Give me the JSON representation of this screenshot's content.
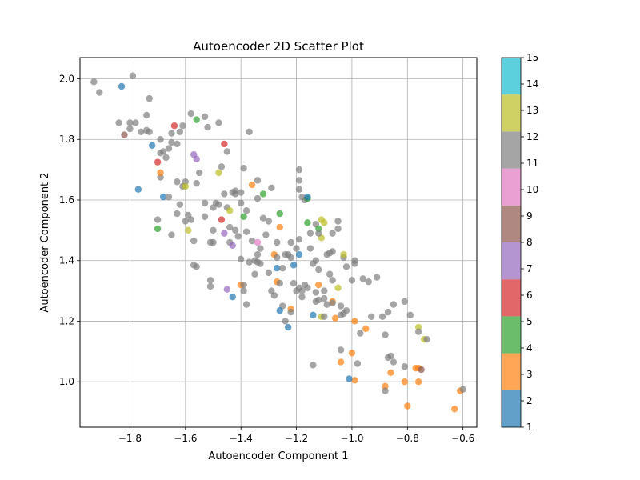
{
  "chart_data": {
    "type": "scatter",
    "title": "Autoencoder 2D Scatter Plot",
    "xlabel": "Autoencoder Component 1",
    "ylabel": "Autoencoder Component 2",
    "xlim": [
      -1.98,
      -0.55
    ],
    "ylim": [
      0.85,
      2.07
    ],
    "xticks": [
      -1.8,
      -1.6,
      -1.4,
      -1.2,
      -1.0,
      -0.8,
      -0.6
    ],
    "xtick_labels": [
      "−1.8",
      "−1.6",
      "−1.4",
      "−1.2",
      "−1.0",
      "−0.8",
      "−0.6"
    ],
    "yticks": [
      1.0,
      1.2,
      1.4,
      1.6,
      1.8,
      2.0
    ],
    "ytick_labels": [
      "1.0",
      "1.2",
      "1.4",
      "1.6",
      "1.8",
      "2.0"
    ],
    "grid": true,
    "colorbar": {
      "range": [
        1,
        15
      ],
      "ticks": [
        1,
        2,
        3,
        4,
        5,
        6,
        7,
        8,
        9,
        10,
        11,
        12,
        13,
        14,
        15
      ],
      "bands": [
        {
          "from": 1,
          "to": 2.4,
          "color": "#1f77b4"
        },
        {
          "from": 2.4,
          "to": 3.8,
          "color": "#ff7f0e"
        },
        {
          "from": 3.8,
          "to": 5.2,
          "color": "#2ca02c"
        },
        {
          "from": 5.2,
          "to": 6.6,
          "color": "#d62728"
        },
        {
          "from": 6.6,
          "to": 8.0,
          "color": "#9467bd"
        },
        {
          "from": 8.0,
          "to": 9.4,
          "color": "#8c564b"
        },
        {
          "from": 9.4,
          "to": 10.8,
          "color": "#e377c2"
        },
        {
          "from": 10.8,
          "to": 12.2,
          "color": "#7f7f7f"
        },
        {
          "from": 12.2,
          "to": 13.6,
          "color": "#bcbd22"
        },
        {
          "from": 13.6,
          "to": 15,
          "color": "#17becf"
        }
      ]
    },
    "points": [
      [
        -1.93,
        1.99,
        11.5
      ],
      [
        -1.91,
        1.955,
        11.5
      ],
      [
        -1.83,
        1.975,
        1.5
      ],
      [
        -1.79,
        2.01,
        11.5
      ],
      [
        -1.84,
        1.855,
        11.5
      ],
      [
        -1.82,
        1.815,
        8.5
      ],
      [
        -1.8,
        1.835,
        11.5
      ],
      [
        -1.8,
        1.855,
        11.5
      ],
      [
        -1.78,
        1.855,
        11.5
      ],
      [
        -1.76,
        1.825,
        11.5
      ],
      [
        -1.74,
        1.83,
        11.5
      ],
      [
        -1.73,
        1.825,
        11.5
      ],
      [
        -1.74,
        1.88,
        11.5
      ],
      [
        -1.73,
        1.935,
        11.5
      ],
      [
        -1.72,
        1.78,
        1.5
      ],
      [
        -1.7,
        1.725,
        5.5
      ],
      [
        -1.69,
        1.755,
        11.5
      ],
      [
        -1.69,
        1.8,
        11.5
      ],
      [
        -1.68,
        1.76,
        11.5
      ],
      [
        -1.67,
        1.74,
        11.5
      ],
      [
        -1.66,
        1.77,
        11.5
      ],
      [
        -1.65,
        1.82,
        11.5
      ],
      [
        -1.64,
        1.845,
        5.5
      ],
      [
        -1.63,
        1.785,
        11.5
      ],
      [
        -1.62,
        1.825,
        11.5
      ],
      [
        -1.61,
        1.845,
        11.5
      ],
      [
        -1.65,
        1.79,
        11.5
      ],
      [
        -1.58,
        1.885,
        11.5
      ],
      [
        -1.56,
        1.865,
        4.5
      ],
      [
        -1.53,
        1.875,
        11.5
      ],
      [
        -1.52,
        1.84,
        11.5
      ],
      [
        -1.48,
        1.855,
        11.5
      ],
      [
        -1.46,
        1.785,
        5.5
      ],
      [
        -1.45,
        1.76,
        11.5
      ],
      [
        -1.37,
        1.825,
        11.5
      ],
      [
        -1.57,
        1.75,
        7.5
      ],
      [
        -1.56,
        1.735,
        7.5
      ],
      [
        -1.77,
        1.635,
        1.5
      ],
      [
        -1.69,
        1.675,
        11.5
      ],
      [
        -1.69,
        1.69,
        3.5
      ],
      [
        -1.68,
        1.61,
        1.5
      ],
      [
        -1.66,
        1.61,
        11.5
      ],
      [
        -1.63,
        1.66,
        11.5
      ],
      [
        -1.61,
        1.645,
        11.5
      ],
      [
        -1.6,
        1.66,
        11.5
      ],
      [
        -1.6,
        1.645,
        12.5
      ],
      [
        -1.62,
        1.585,
        11.5
      ],
      [
        -1.63,
        1.555,
        11.5
      ],
      [
        -1.6,
        1.53,
        11.5
      ],
      [
        -1.59,
        1.55,
        11.5
      ],
      [
        -1.58,
        1.535,
        11.5
      ],
      [
        -1.56,
        1.655,
        11.5
      ],
      [
        -1.55,
        1.69,
        11.5
      ],
      [
        -1.53,
        1.59,
        11.5
      ],
      [
        -1.5,
        1.575,
        11.5
      ],
      [
        -1.49,
        1.59,
        11.5
      ],
      [
        -1.48,
        1.585,
        11.5
      ],
      [
        -1.47,
        1.71,
        11.5
      ],
      [
        -1.48,
        1.69,
        12.5
      ],
      [
        -1.46,
        1.62,
        11.5
      ],
      [
        -1.45,
        1.575,
        11.5
      ],
      [
        -1.44,
        1.565,
        13.5
      ],
      [
        -1.43,
        1.625,
        11.5
      ],
      [
        -1.42,
        1.63,
        11.5
      ],
      [
        -1.42,
        1.62,
        11.5
      ],
      [
        -1.4,
        1.625,
        11.5
      ],
      [
        -1.4,
        1.59,
        11.5
      ],
      [
        -1.39,
        1.705,
        11.5
      ],
      [
        -1.38,
        1.565,
        11.5
      ],
      [
        -1.39,
        1.545,
        4.5
      ],
      [
        -1.36,
        1.65,
        3.5
      ],
      [
        -1.34,
        1.665,
        11.5
      ],
      [
        -1.34,
        1.605,
        11.5
      ],
      [
        -1.32,
        1.62,
        4.5
      ],
      [
        -1.29,
        1.64,
        11.5
      ],
      [
        -1.32,
        1.54,
        11.5
      ],
      [
        -1.26,
        1.555,
        4.5
      ],
      [
        -1.26,
        1.51,
        3.5
      ],
      [
        -1.3,
        1.53,
        11.5
      ],
      [
        -1.7,
        1.505,
        4.5
      ],
      [
        -1.7,
        1.535,
        11.5
      ],
      [
        -1.65,
        1.485,
        11.5
      ],
      [
        -1.59,
        1.5,
        13.5
      ],
      [
        -1.57,
        1.465,
        11.5
      ],
      [
        -1.53,
        1.545,
        11.5
      ],
      [
        -1.51,
        1.46,
        11.5
      ],
      [
        -1.5,
        1.46,
        11.5
      ],
      [
        -1.5,
        1.5,
        11.5
      ],
      [
        -1.47,
        1.535,
        5.5
      ],
      [
        -1.46,
        1.49,
        7.5
      ],
      [
        -1.44,
        1.51,
        11.5
      ],
      [
        -1.42,
        1.5,
        11.5
      ],
      [
        -1.44,
        1.46,
        11.5
      ],
      [
        -1.43,
        1.45,
        7.5
      ],
      [
        -1.41,
        1.48,
        11.5
      ],
      [
        -1.38,
        1.495,
        11.5
      ],
      [
        -1.36,
        1.465,
        11.5
      ],
      [
        -1.33,
        1.44,
        11.5
      ],
      [
        -1.34,
        1.42,
        11.5
      ],
      [
        -1.34,
        1.395,
        11.5
      ],
      [
        -1.35,
        1.4,
        11.5
      ],
      [
        -1.34,
        1.46,
        9.5
      ],
      [
        -1.37,
        1.395,
        11.5
      ],
      [
        -1.4,
        1.405,
        11.5
      ],
      [
        -1.31,
        1.485,
        11.5
      ],
      [
        -1.27,
        1.46,
        11.5
      ],
      [
        -1.28,
        1.42,
        3.5
      ],
      [
        -1.27,
        1.41,
        11.5
      ],
      [
        -1.27,
        1.375,
        1.5
      ],
      [
        -1.25,
        1.375,
        11.5
      ],
      [
        -1.24,
        1.42,
        11.5
      ],
      [
        -1.23,
        1.42,
        11.5
      ],
      [
        -1.22,
        1.41,
        11.5
      ],
      [
        -1.21,
        1.385,
        1.5
      ],
      [
        -1.22,
        1.46,
        11.5
      ],
      [
        -1.2,
        1.44,
        11.5
      ],
      [
        -1.19,
        1.47,
        11.5
      ],
      [
        -1.19,
        1.7,
        11.5
      ],
      [
        -1.19,
        1.665,
        11.5
      ],
      [
        -1.19,
        1.635,
        11.5
      ],
      [
        -1.18,
        1.61,
        11.5
      ],
      [
        -1.17,
        1.6,
        11.5
      ],
      [
        -1.16,
        1.605,
        4.5
      ],
      [
        -1.16,
        1.61,
        1.5
      ],
      [
        -1.16,
        1.525,
        4.5
      ],
      [
        -1.15,
        1.49,
        11.5
      ],
      [
        -1.13,
        1.52,
        11.5
      ],
      [
        -1.11,
        1.535,
        13.5
      ],
      [
        -1.1,
        1.525,
        12.5
      ],
      [
        -1.12,
        1.505,
        4.5
      ],
      [
        -1.11,
        1.475,
        12.5
      ],
      [
        -1.12,
        1.49,
        11.5
      ],
      [
        -1.19,
        1.42,
        1.5
      ],
      [
        -1.15,
        1.44,
        11.5
      ],
      [
        -1.13,
        1.4,
        11.5
      ],
      [
        -1.14,
        1.39,
        11.5
      ],
      [
        -1.12,
        1.37,
        11.5
      ],
      [
        -1.09,
        1.42,
        11.5
      ],
      [
        -1.08,
        1.425,
        11.5
      ],
      [
        -1.07,
        1.43,
        11.5
      ],
      [
        -1.07,
        1.49,
        11.5
      ],
      [
        -1.05,
        1.505,
        11.5
      ],
      [
        -1.05,
        1.53,
        11.5
      ],
      [
        -1.03,
        1.41,
        11.5
      ],
      [
        -1.03,
        1.42,
        12.5
      ],
      [
        -1.02,
        1.38,
        11.5
      ],
      [
        -0.99,
        1.4,
        11.5
      ],
      [
        -0.99,
        1.39,
        11.5
      ],
      [
        -1.0,
        1.335,
        11.5
      ],
      [
        -0.96,
        1.34,
        11.5
      ],
      [
        -0.94,
        1.33,
        11.5
      ],
      [
        -0.91,
        1.345,
        11.5
      ],
      [
        -1.05,
        1.31,
        12.5
      ],
      [
        -1.08,
        1.355,
        11.5
      ],
      [
        -1.07,
        1.335,
        11.5
      ],
      [
        -1.1,
        1.3,
        11.5
      ],
      [
        -1.12,
        1.32,
        3.5
      ],
      [
        -1.13,
        1.295,
        11.5
      ],
      [
        -1.1,
        1.275,
        11.5
      ],
      [
        -1.12,
        1.27,
        11.5
      ],
      [
        -1.13,
        1.265,
        11.5
      ],
      [
        -1.09,
        1.255,
        11.5
      ],
      [
        -1.07,
        1.265,
        3.5
      ],
      [
        -1.07,
        1.26,
        11.5
      ],
      [
        -1.04,
        1.25,
        11.5
      ],
      [
        -1.06,
        1.21,
        3.5
      ],
      [
        -1.04,
        1.22,
        11.5
      ],
      [
        -1.03,
        1.225,
        11.5
      ],
      [
        -1.02,
        1.235,
        11.5
      ],
      [
        -0.99,
        1.2,
        3.5
      ],
      [
        -0.97,
        1.16,
        11.5
      ],
      [
        -0.95,
        1.175,
        3.5
      ],
      [
        -0.93,
        1.215,
        11.5
      ],
      [
        -0.89,
        1.215,
        11.5
      ],
      [
        -0.87,
        1.23,
        11.5
      ],
      [
        -0.85,
        1.255,
        11.5
      ],
      [
        -0.81,
        1.265,
        11.5
      ],
      [
        -0.79,
        1.22,
        11.5
      ],
      [
        -0.76,
        1.18,
        12.5
      ],
      [
        -0.76,
        1.165,
        11.5
      ],
      [
        -0.74,
        1.14,
        13.5
      ],
      [
        -0.73,
        1.14,
        11.5
      ],
      [
        -1.14,
        1.055,
        11.5
      ],
      [
        -1.14,
        1.22,
        1.5
      ],
      [
        -1.11,
        1.215,
        13.5
      ],
      [
        -1.1,
        1.215,
        11.5
      ],
      [
        -1.04,
        1.105,
        11.5
      ],
      [
        -1.0,
        1.095,
        3.5
      ],
      [
        -0.98,
        1.06,
        11.5
      ],
      [
        -1.04,
        1.065,
        3.5
      ],
      [
        -0.99,
        1.005,
        3.5
      ],
      [
        -1.01,
        1.01,
        1.5
      ],
      [
        -0.88,
        1.155,
        11.5
      ],
      [
        -0.87,
        1.08,
        11.5
      ],
      [
        -0.86,
        1.085,
        11.5
      ],
      [
        -0.85,
        1.065,
        11.5
      ],
      [
        -0.86,
        1.03,
        3.5
      ],
      [
        -0.81,
        1.05,
        11.5
      ],
      [
        -0.77,
        1.045,
        3.5
      ],
      [
        -0.76,
        1.045,
        3.5
      ],
      [
        -0.75,
        1.04,
        8.5
      ],
      [
        -0.76,
        1.0,
        3.5
      ],
      [
        -0.81,
        1.0,
        3.5
      ],
      [
        -0.88,
        0.985,
        3.5
      ],
      [
        -0.88,
        0.97,
        11.5
      ],
      [
        -0.8,
        0.92,
        3.5
      ],
      [
        -0.63,
        0.91,
        3.5
      ],
      [
        -0.61,
        0.97,
        3.5
      ],
      [
        -0.6,
        0.975,
        11.5
      ],
      [
        -1.51,
        1.335,
        11.5
      ],
      [
        -1.51,
        1.315,
        11.5
      ],
      [
        -1.56,
        1.38,
        11.5
      ],
      [
        -1.57,
        1.385,
        11.5
      ],
      [
        -1.45,
        1.305,
        7.5
      ],
      [
        -1.43,
        1.28,
        1.5
      ],
      [
        -1.4,
        1.32,
        3.5
      ],
      [
        -1.39,
        1.32,
        11.5
      ],
      [
        -1.39,
        1.3,
        11.5
      ],
      [
        -1.38,
        1.255,
        11.5
      ],
      [
        -1.35,
        1.355,
        11.5
      ],
      [
        -1.33,
        1.39,
        11.5
      ],
      [
        -1.3,
        1.36,
        11.5
      ],
      [
        -1.29,
        1.3,
        11.5
      ],
      [
        -1.28,
        1.285,
        11.5
      ],
      [
        -1.27,
        1.33,
        3.5
      ],
      [
        -1.26,
        1.325,
        11.5
      ],
      [
        -1.25,
        1.25,
        11.5
      ],
      [
        -1.26,
        1.235,
        1.5
      ],
      [
        -1.24,
        1.2,
        11.5
      ],
      [
        -1.23,
        1.18,
        1.5
      ],
      [
        -1.22,
        1.24,
        3.5
      ],
      [
        -1.22,
        1.23,
        11.5
      ],
      [
        -1.21,
        1.325,
        11.5
      ],
      [
        -1.19,
        1.31,
        11.5
      ],
      [
        -1.18,
        1.28,
        11.5
      ],
      [
        -1.18,
        1.3,
        11.5
      ],
      [
        -1.17,
        1.32,
        11.5
      ],
      [
        -1.16,
        1.31,
        11.5
      ],
      [
        -1.2,
        1.3,
        11.5
      ]
    ]
  }
}
